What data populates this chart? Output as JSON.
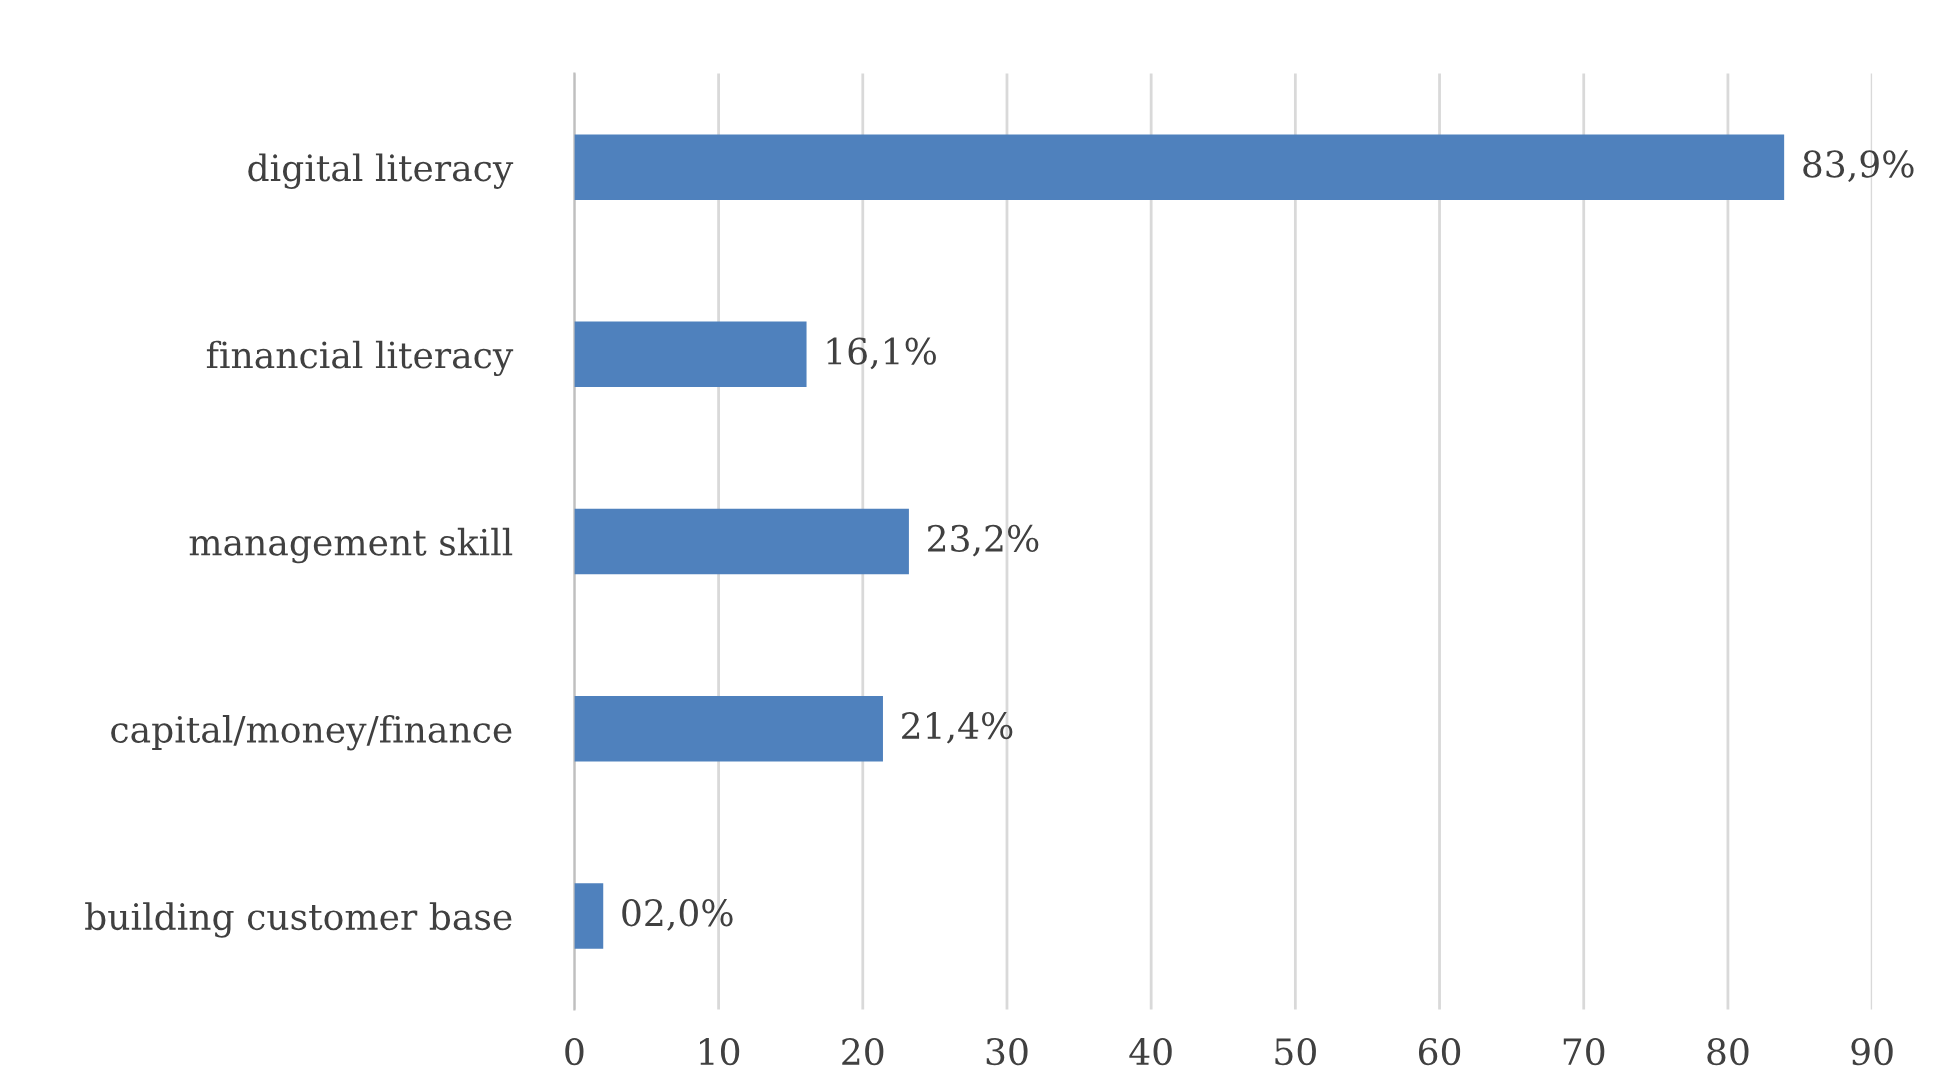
{
  "chart_data": {
    "type": "bar",
    "orientation": "horizontal",
    "categories": [
      "digital literacy",
      "financial literacy",
      "management skill",
      "capital/money/finance",
      "building customer base"
    ],
    "values": [
      83.9,
      16.1,
      23.2,
      21.4,
      2.0
    ],
    "value_labels": [
      "83,9%",
      "16,1%",
      "23,2%",
      "21,4%",
      "02,0%"
    ],
    "color": "#4f81bd",
    "xlim": [
      0,
      90
    ],
    "xticks": [
      0,
      10,
      20,
      30,
      40,
      50,
      60,
      70,
      80,
      90
    ],
    "grid": "x",
    "legend": false
  }
}
